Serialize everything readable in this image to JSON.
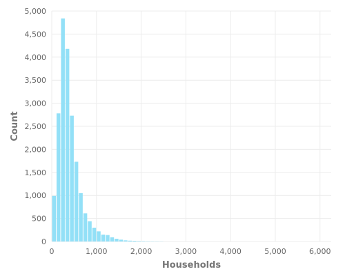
{
  "chart_data": {
    "type": "bar",
    "title": "",
    "xlabel": "Households",
    "ylabel": "Count",
    "xlim": [
      0,
      6250
    ],
    "ylim": [
      0,
      5000
    ],
    "grid": true,
    "x_ticks": [
      0,
      1000,
      2000,
      3000,
      4000,
      5000,
      6000
    ],
    "x_tick_labels": [
      "0",
      "1,000",
      "2,000",
      "3,000",
      "4,000",
      "5,000",
      "6,000"
    ],
    "y_ticks": [
      0,
      500,
      1000,
      1500,
      2000,
      2500,
      3000,
      3500,
      4000,
      4500,
      5000
    ],
    "y_tick_labels": [
      "0",
      "500",
      "1,000",
      "1,500",
      "2,000",
      "2,500",
      "3,000",
      "3,500",
      "4,000",
      "4,500",
      "5,000"
    ],
    "bar_color": "#93e0f7",
    "bin_width": 100,
    "bins": [
      {
        "x0": 0,
        "x1": 100,
        "count": 990
      },
      {
        "x0": 100,
        "x1": 200,
        "count": 2780
      },
      {
        "x0": 200,
        "x1": 300,
        "count": 4840
      },
      {
        "x0": 300,
        "x1": 400,
        "count": 4180
      },
      {
        "x0": 400,
        "x1": 500,
        "count": 2730
      },
      {
        "x0": 500,
        "x1": 600,
        "count": 1730
      },
      {
        "x0": 600,
        "x1": 700,
        "count": 1050
      },
      {
        "x0": 700,
        "x1": 800,
        "count": 610
      },
      {
        "x0": 800,
        "x1": 900,
        "count": 440
      },
      {
        "x0": 900,
        "x1": 1000,
        "count": 300
      },
      {
        "x0": 1000,
        "x1": 1100,
        "count": 220
      },
      {
        "x0": 1100,
        "x1": 1200,
        "count": 150
      },
      {
        "x0": 1200,
        "x1": 1300,
        "count": 140
      },
      {
        "x0": 1300,
        "x1": 1400,
        "count": 90
      },
      {
        "x0": 1400,
        "x1": 1500,
        "count": 60
      },
      {
        "x0": 1500,
        "x1": 1600,
        "count": 40
      },
      {
        "x0": 1600,
        "x1": 1700,
        "count": 25
      },
      {
        "x0": 1700,
        "x1": 1800,
        "count": 18
      },
      {
        "x0": 1800,
        "x1": 1900,
        "count": 15
      },
      {
        "x0": 1900,
        "x1": 2000,
        "count": 10
      },
      {
        "x0": 2000,
        "x1": 2100,
        "count": 8
      },
      {
        "x0": 2100,
        "x1": 2200,
        "count": 6
      },
      {
        "x0": 2200,
        "x1": 2300,
        "count": 5
      },
      {
        "x0": 2300,
        "x1": 2400,
        "count": 4
      },
      {
        "x0": 2400,
        "x1": 2500,
        "count": 3
      }
    ]
  }
}
